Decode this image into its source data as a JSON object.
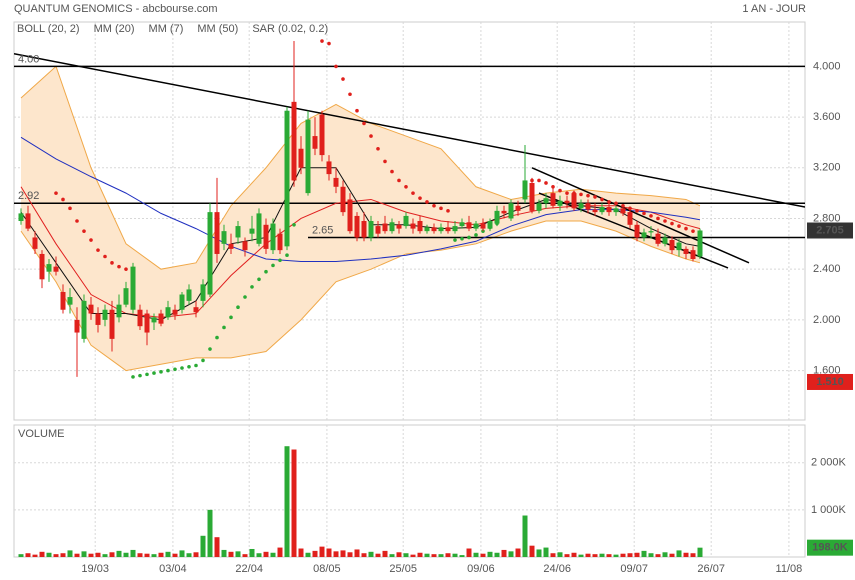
{
  "chart_data": {
    "type": "candlestick",
    "title": "QUANTUM GENOMICS - abcbourse.com",
    "period": "1 AN - JOUR",
    "xlim": [
      -1,
      112
    ],
    "xticks": [
      {
        "value": 10.6,
        "label": "19/03"
      },
      {
        "value": 21.7,
        "label": "03/04"
      },
      {
        "value": 32.6,
        "label": "22/04"
      },
      {
        "value": 43.7,
        "label": "08/05"
      },
      {
        "value": 54.6,
        "label": "25/05"
      },
      {
        "value": 65.7,
        "label": "09/06"
      },
      {
        "value": 76.6,
        "label": "24/06"
      },
      {
        "value": 87.6,
        "label": "09/07"
      },
      {
        "value": 98.6,
        "label": "26/07"
      },
      {
        "value": 109.7,
        "label": "11/08"
      }
    ],
    "ylim": [
      1.21,
      4.35
    ],
    "yticks": [
      {
        "value": 1.6,
        "label": "1.600"
      },
      {
        "value": 2.0,
        "label": "2.000"
      },
      {
        "value": 2.4,
        "label": "2.400"
      },
      {
        "value": 2.8,
        "label": "2.800"
      },
      {
        "value": 3.2,
        "label": "3.200"
      },
      {
        "value": 3.6,
        "label": "3.600"
      },
      {
        "value": 4.0,
        "label": "4.000"
      }
    ],
    "grid": true,
    "up_color": "#2aaa35",
    "down_color": "#e0201c",
    "ohlc": [
      [
        2.78,
        2.88,
        2.75,
        2.84
      ],
      [
        2.84,
        2.9,
        2.7,
        2.72
      ],
      [
        2.65,
        2.7,
        2.52,
        2.56
      ],
      [
        2.52,
        2.55,
        2.25,
        2.32
      ],
      [
        2.38,
        2.48,
        2.3,
        2.44
      ],
      [
        2.42,
        2.5,
        2.35,
        2.38
      ],
      [
        2.22,
        2.28,
        2.05,
        2.08
      ],
      [
        2.12,
        2.25,
        2.05,
        2.18
      ],
      [
        2.0,
        2.1,
        1.55,
        1.9
      ],
      [
        1.85,
        2.2,
        1.82,
        2.15
      ],
      [
        2.12,
        2.18,
        2.0,
        2.05
      ],
      [
        2.05,
        2.1,
        1.9,
        1.96
      ],
      [
        2.0,
        2.12,
        1.95,
        2.08
      ],
      [
        2.08,
        2.15,
        1.75,
        1.85
      ],
      [
        2.02,
        2.2,
        1.98,
        2.12
      ],
      [
        2.12,
        2.3,
        2.1,
        2.25
      ],
      [
        2.08,
        2.45,
        2.05,
        2.42
      ],
      [
        2.08,
        2.12,
        1.92,
        1.95
      ],
      [
        2.05,
        2.08,
        1.8,
        1.9
      ],
      [
        1.98,
        2.05,
        1.92,
        2.02
      ],
      [
        2.05,
        2.08,
        1.95,
        1.97
      ],
      [
        2.02,
        2.15,
        2.0,
        2.1
      ],
      [
        2.08,
        2.12,
        2.0,
        2.04
      ],
      [
        2.08,
        2.22,
        2.05,
        2.2
      ],
      [
        2.15,
        2.28,
        2.12,
        2.24
      ],
      [
        2.1,
        2.15,
        2.02,
        2.06
      ],
      [
        2.15,
        2.32,
        2.1,
        2.28
      ],
      [
        2.2,
        2.92,
        2.18,
        2.85
      ],
      [
        2.85,
        3.12,
        2.45,
        2.52
      ],
      [
        2.6,
        2.75,
        2.55,
        2.7
      ],
      [
        2.6,
        2.68,
        2.52,
        2.56
      ],
      [
        2.65,
        2.78,
        2.6,
        2.74
      ],
      [
        2.62,
        2.65,
        2.5,
        2.55
      ],
      [
        2.68,
        2.82,
        2.62,
        2.72
      ],
      [
        2.6,
        2.88,
        2.58,
        2.84
      ],
      [
        2.75,
        2.8,
        2.52,
        2.56
      ],
      [
        2.55,
        2.8,
        2.52,
        2.76
      ],
      [
        2.68,
        2.72,
        2.52,
        2.55
      ],
      [
        2.58,
        3.68,
        2.55,
        3.65
      ],
      [
        3.72,
        4.2,
        3.05,
        3.1
      ],
      [
        3.35,
        3.45,
        3.15,
        3.2
      ],
      [
        3.0,
        3.65,
        2.98,
        3.58
      ],
      [
        3.45,
        3.6,
        3.3,
        3.35
      ],
      [
        3.62,
        3.65,
        3.25,
        3.3
      ],
      [
        3.25,
        3.3,
        3.1,
        3.15
      ],
      [
        3.12,
        3.2,
        3.0,
        3.05
      ],
      [
        3.05,
        3.1,
        2.82,
        2.85
      ],
      [
        2.95,
        3.0,
        2.68,
        2.7
      ],
      [
        2.82,
        2.85,
        2.62,
        2.65
      ],
      [
        2.78,
        2.85,
        2.62,
        2.65
      ],
      [
        2.65,
        2.82,
        2.62,
        2.78
      ],
      [
        2.74,
        2.78,
        2.65,
        2.68
      ],
      [
        2.76,
        2.82,
        2.68,
        2.7
      ],
      [
        2.7,
        2.8,
        2.68,
        2.77
      ],
      [
        2.75,
        2.78,
        2.68,
        2.72
      ],
      [
        2.74,
        2.85,
        2.72,
        2.82
      ],
      [
        2.76,
        2.8,
        2.68,
        2.72
      ],
      [
        2.78,
        2.82,
        2.68,
        2.7
      ],
      [
        2.7,
        2.75,
        2.68,
        2.73
      ],
      [
        2.73,
        2.76,
        2.68,
        2.7
      ],
      [
        2.7,
        2.76,
        2.68,
        2.73
      ],
      [
        2.73,
        2.78,
        2.68,
        2.7
      ],
      [
        2.7,
        2.78,
        2.68,
        2.74
      ],
      [
        2.74,
        2.8,
        2.72,
        2.77
      ],
      [
        2.77,
        2.82,
        2.7,
        2.72
      ],
      [
        2.72,
        2.78,
        2.7,
        2.76
      ],
      [
        2.76,
        2.8,
        2.7,
        2.72
      ],
      [
        2.72,
        2.8,
        2.7,
        2.78
      ],
      [
        2.76,
        2.9,
        2.74,
        2.86
      ],
      [
        2.86,
        2.9,
        2.8,
        2.84
      ],
      [
        2.8,
        2.95,
        2.78,
        2.92
      ],
      [
        2.9,
        2.94,
        2.82,
        2.86
      ],
      [
        2.95,
        3.38,
        2.92,
        3.1
      ],
      [
        3.08,
        3.12,
        2.84,
        2.86
      ],
      [
        2.86,
        2.95,
        2.84,
        2.92
      ],
      [
        2.92,
        3.0,
        2.88,
        2.96
      ],
      [
        3.0,
        3.05,
        2.88,
        2.9
      ],
      [
        2.9,
        2.98,
        2.86,
        2.94
      ],
      [
        2.94,
        2.98,
        2.88,
        2.92
      ],
      [
        3.0,
        3.02,
        2.86,
        2.88
      ],
      [
        2.88,
        2.95,
        2.85,
        2.92
      ],
      [
        2.92,
        2.95,
        2.84,
        2.87
      ],
      [
        2.87,
        2.92,
        2.82,
        2.85
      ],
      [
        2.85,
        2.92,
        2.83,
        2.89
      ],
      [
        2.89,
        2.93,
        2.82,
        2.85
      ],
      [
        2.85,
        2.9,
        2.82,
        2.88
      ],
      [
        2.88,
        2.9,
        2.82,
        2.84
      ],
      [
        2.85,
        2.88,
        2.72,
        2.75
      ],
      [
        2.75,
        2.78,
        2.62,
        2.65
      ],
      [
        2.65,
        2.72,
        2.62,
        2.69
      ],
      [
        2.69,
        2.74,
        2.64,
        2.7
      ],
      [
        2.68,
        2.72,
        2.58,
        2.6
      ],
      [
        2.6,
        2.68,
        2.58,
        2.65
      ],
      [
        2.63,
        2.66,
        2.52,
        2.55
      ],
      [
        2.55,
        2.64,
        2.5,
        2.61
      ],
      [
        2.56,
        2.58,
        2.48,
        2.52
      ],
      [
        2.55,
        2.58,
        2.46,
        2.48
      ],
      [
        2.5,
        2.72,
        2.48,
        2.705
      ]
    ],
    "indicator_x": [
      0,
      5,
      10,
      15,
      20,
      25,
      30,
      35,
      40,
      45,
      50,
      55,
      60,
      65,
      70,
      75,
      80,
      85,
      90,
      95,
      97
    ],
    "bollinger": {
      "name": "BOLL (20, 2)",
      "color": "#f0a848",
      "fill": "#fde6cc",
      "upper": [
        3.75,
        4.0,
        3.2,
        2.6,
        2.4,
        2.45,
        2.9,
        3.2,
        3.55,
        3.7,
        3.55,
        3.45,
        3.35,
        3.05,
        2.95,
        3.0,
        3.03,
        3.0,
        2.98,
        2.95,
        2.9
      ],
      "lower": [
        2.7,
        2.3,
        1.8,
        1.6,
        1.65,
        1.7,
        1.7,
        1.75,
        2.0,
        2.3,
        2.4,
        2.52,
        2.55,
        2.6,
        2.7,
        2.78,
        2.78,
        2.7,
        2.58,
        2.48,
        2.45
      ]
    },
    "series": [
      {
        "name": "MM (20)",
        "color": "#e02020",
        "values": [
          3.05,
          2.6,
          2.2,
          2.05,
          2.02,
          2.05,
          2.35,
          2.6,
          2.8,
          2.92,
          2.95,
          2.85,
          2.78,
          2.75,
          2.82,
          2.88,
          2.9,
          2.9,
          2.85,
          2.75,
          2.72
        ]
      },
      {
        "name": "MM (7)",
        "color": "#111111",
        "values": [
          2.85,
          2.45,
          2.05,
          2.05,
          2.0,
          2.15,
          2.6,
          2.65,
          3.2,
          3.2,
          2.75,
          2.75,
          2.72,
          2.73,
          2.85,
          2.95,
          2.9,
          2.87,
          2.72,
          2.6,
          2.58
        ]
      },
      {
        "name": "MM (50)",
        "color": "#2030c0",
        "values": [
          3.44,
          3.27,
          3.13,
          3.0,
          2.84,
          2.72,
          2.58,
          2.48,
          2.46,
          2.46,
          2.48,
          2.51,
          2.56,
          2.62,
          2.74,
          2.83,
          2.87,
          2.87,
          2.85,
          2.81,
          2.79
        ]
      }
    ],
    "sar": {
      "name": "SAR (0.02, 0.2)",
      "color": "#e02020",
      "x": [
        5,
        6,
        7,
        8,
        9,
        10,
        11,
        12,
        13,
        14,
        15,
        16,
        17,
        18,
        19,
        20,
        21,
        22,
        23,
        24,
        25,
        26,
        27,
        28,
        29,
        30,
        31,
        32,
        33,
        34,
        35,
        36,
        37,
        38,
        39,
        43,
        44,
        45,
        46,
        47,
        48,
        49,
        50,
        51,
        52,
        53,
        54,
        55,
        56,
        57,
        58,
        59,
        60,
        61,
        62,
        63,
        64,
        65,
        66,
        67,
        68,
        73,
        74,
        75,
        76,
        77,
        78,
        79,
        80,
        81,
        82,
        83,
        84,
        85,
        86,
        87,
        88,
        89,
        90,
        91,
        92,
        93,
        94,
        95,
        96
      ],
      "values": [
        3.0,
        2.95,
        2.88,
        2.78,
        2.7,
        2.63,
        2.55,
        2.5,
        2.45,
        2.42,
        2.4,
        1.55,
        1.56,
        1.57,
        1.58,
        1.59,
        1.6,
        1.61,
        1.62,
        1.63,
        1.64,
        1.68,
        1.77,
        1.86,
        1.94,
        2.02,
        2.1,
        2.18,
        2.26,
        2.32,
        2.38,
        2.43,
        2.47,
        2.51,
        2.75,
        4.2,
        4.18,
        4.0,
        3.9,
        3.78,
        3.65,
        3.55,
        3.45,
        3.35,
        3.25,
        3.17,
        3.1,
        3.05,
        3.0,
        2.96,
        2.93,
        2.9,
        2.88,
        2.86,
        2.63,
        2.64,
        2.65,
        2.67,
        2.7,
        2.73,
        2.76,
        3.1,
        3.1,
        3.08,
        3.05,
        3.02,
        3.0,
        3.0,
        2.99,
        2.98,
        2.97,
        2.95,
        2.93,
        2.92,
        2.9,
        2.88,
        2.86,
        2.84,
        2.82,
        2.8,
        2.78,
        2.76,
        2.74,
        2.72,
        2.7
      ]
    },
    "levels": [
      {
        "value": 4.0,
        "label": "4.00"
      },
      {
        "value": 2.92,
        "label": "2.92"
      },
      {
        "value": 2.65,
        "label": "2.65",
        "x": 41
      }
    ],
    "trendlines": [
      {
        "x": [
          -1,
          112
        ],
        "values": [
          4.1,
          2.89
        ]
      },
      {
        "x": [
          73,
          104
        ],
        "values": [
          3.2,
          2.45
        ]
      },
      {
        "x": [
          74,
          101
        ],
        "values": [
          3.0,
          2.41
        ]
      }
    ],
    "last_price": 2.705,
    "low_marker": {
      "value": 1.51,
      "label": "1.510"
    },
    "volume_title": "VOLUME",
    "volume_ylim": [
      0,
      2800
    ],
    "volume_yticks": [
      {
        "value": 1000,
        "label": "1 000K"
      },
      {
        "value": 2000,
        "label": "2 000K"
      }
    ],
    "volume": [
      60,
      80,
      50,
      110,
      90,
      60,
      80,
      140,
      70,
      120,
      70,
      90,
      60,
      100,
      130,
      90,
      150,
      80,
      70,
      60,
      90,
      110,
      70,
      140,
      80,
      100,
      450,
      1000,
      420,
      150,
      110,
      120,
      60,
      170,
      80,
      110,
      90,
      200,
      2350,
      2280,
      180,
      90,
      130,
      220,
      180,
      120,
      140,
      100,
      160,
      80,
      110,
      70,
      130,
      60,
      100,
      80,
      50,
      90,
      70,
      60,
      60,
      80,
      70,
      40,
      180,
      90,
      70,
      110,
      90,
      150,
      120,
      180,
      880,
      240,
      160,
      200,
      80,
      100,
      60,
      90,
      50,
      70,
      60,
      70,
      60,
      50,
      70,
      80,
      90,
      130,
      80,
      60,
      100,
      70,
      140,
      90,
      80,
      198
    ],
    "last_volume": {
      "value": 198,
      "label": "198.0K"
    }
  }
}
